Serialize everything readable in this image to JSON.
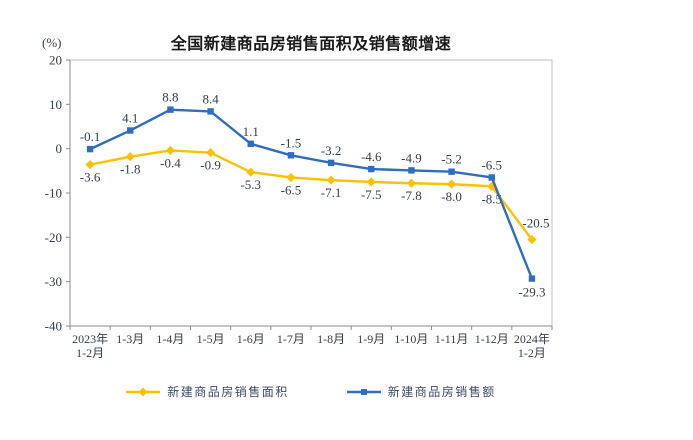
{
  "chart_data": {
    "type": "line",
    "title": "全国新建商品房销售面积及销售额增速",
    "ylabel": "(%)",
    "ylim": [
      -40,
      20
    ],
    "yticks": [
      20,
      10,
      0,
      -10,
      -20,
      -30,
      -40
    ],
    "grid": false,
    "legend_position": "bottom",
    "categories": [
      "2023年\n1-2月",
      "1-3月",
      "1-4月",
      "1-5月",
      "1-6月",
      "1-7月",
      "1-8月",
      "1-9月",
      "1-10月",
      "1-11月",
      "1-12月",
      "2024年\n1-2月"
    ],
    "series": [
      {
        "name": "新建商品房销售面积",
        "color": "#FFC000",
        "marker": "diamond",
        "values": [
          -3.6,
          -1.8,
          -0.4,
          -0.9,
          -5.3,
          -6.5,
          -7.1,
          -7.5,
          -7.8,
          -8.0,
          -8.5,
          -20.5
        ],
        "labels": [
          "-3.6",
          "-1.8",
          "-0.4",
          "-0.9",
          "-5.3",
          "-6.5",
          "-7.1",
          "-7.5",
          "-7.8",
          "-8.0",
          "-8.5",
          "-20.5"
        ],
        "label_sides": [
          "below",
          "below",
          "below",
          "below",
          "below",
          "below",
          "below",
          "below",
          "below",
          "below",
          "below",
          "above"
        ]
      },
      {
        "name": "新建商品房销售额",
        "color": "#2E6DC1",
        "marker": "square",
        "values": [
          -0.1,
          4.1,
          8.8,
          8.4,
          1.1,
          -1.5,
          -3.2,
          -4.6,
          -4.9,
          -5.2,
          -6.5,
          -29.3
        ],
        "labels": [
          "-0.1",
          "4.1",
          "8.8",
          "8.4",
          "1.1",
          "-1.5",
          "-3.2",
          "-4.6",
          "-4.9",
          "-5.2",
          "-6.5",
          "-29.3"
        ],
        "label_sides": [
          "above",
          "above",
          "above",
          "above",
          "above",
          "above",
          "above",
          "above",
          "above",
          "above",
          "above",
          "below"
        ]
      }
    ],
    "label_color": "#333F50",
    "axis_color": "#8C8C8C",
    "border_color": "#BFBFBF"
  }
}
